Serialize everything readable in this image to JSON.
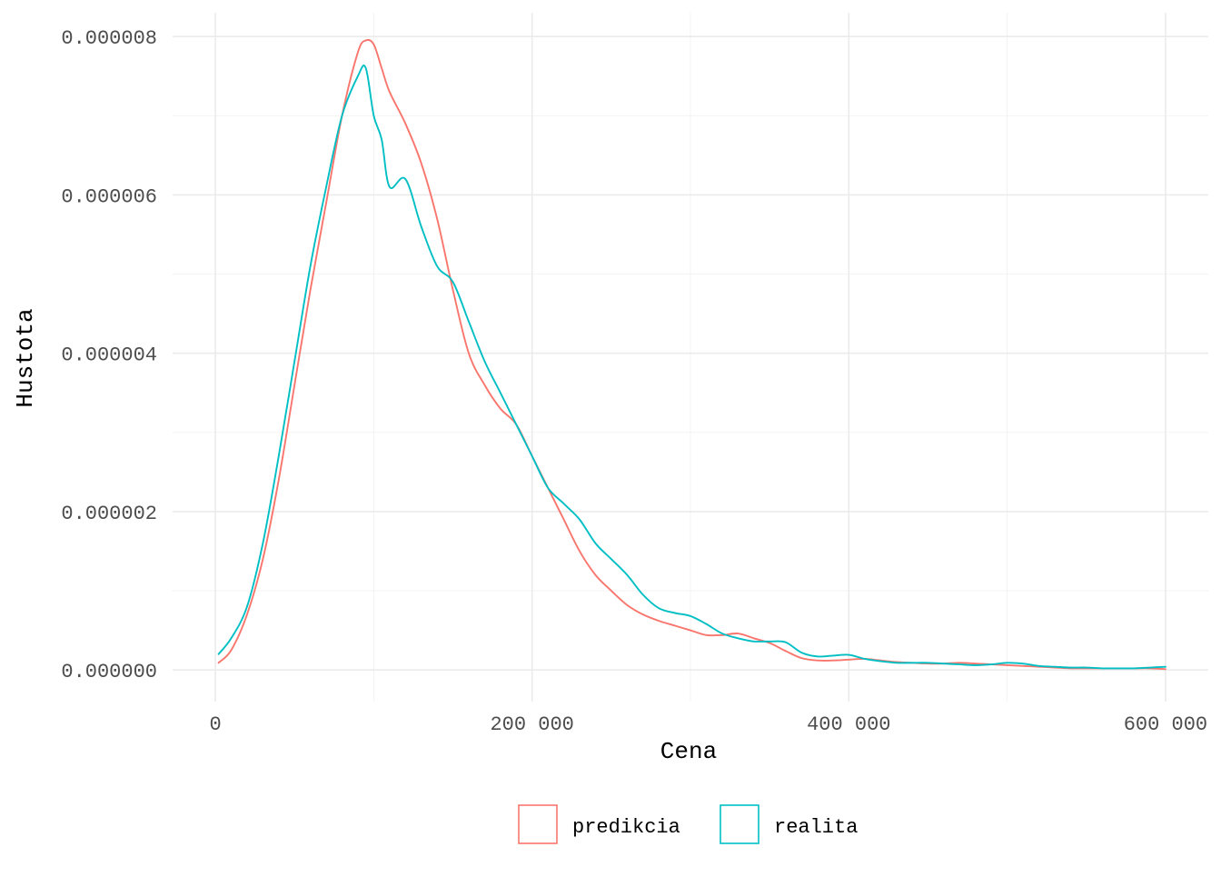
{
  "chart_data": {
    "type": "line",
    "title": "",
    "xlabel": "Cena",
    "ylabel": "Hustota",
    "xlim": [
      -27000,
      627000
    ],
    "ylim": [
      -4e-07,
      8.3e-06
    ],
    "x_ticks": [
      0,
      200000,
      400000,
      600000
    ],
    "x_tick_labels": [
      "0",
      "200 000",
      "400 000",
      "600 000"
    ],
    "y_ticks": [
      0,
      2e-06,
      4e-06,
      6e-06,
      8e-06
    ],
    "y_tick_labels": [
      "0.000000",
      "0.000002",
      "0.000004",
      "0.000006",
      "0.000008"
    ],
    "grid": true,
    "legend_position": "bottom",
    "series": [
      {
        "name": "predikcia",
        "color": "#F8766D",
        "x": [
          2000,
          10000,
          20000,
          30000,
          40000,
          50000,
          60000,
          70000,
          80000,
          90000,
          95000,
          100000,
          105000,
          110000,
          120000,
          130000,
          140000,
          150000,
          160000,
          170000,
          180000,
          190000,
          200000,
          210000,
          220000,
          230000,
          240000,
          250000,
          260000,
          270000,
          280000,
          290000,
          300000,
          310000,
          320000,
          330000,
          340000,
          350000,
          360000,
          370000,
          380000,
          390000,
          400000,
          410000,
          420000,
          430000,
          440000,
          450000,
          460000,
          470000,
          480000,
          490000,
          500000,
          510000,
          520000,
          530000,
          540000,
          550000,
          560000,
          570000,
          580000,
          590000,
          600000
        ],
        "y": [
          9e-08,
          2.5e-07,
          7e-07,
          1.4e-06,
          2.4e-06,
          3.6e-06,
          4.8e-06,
          5.9e-06,
          7e-06,
          7.8e-06,
          7.95e-06,
          7.9e-06,
          7.6e-06,
          7.3e-06,
          6.9e-06,
          6.4e-06,
          5.7e-06,
          4.8e-06,
          4e-06,
          3.6e-06,
          3.3e-06,
          3.1e-06,
          2.7e-06,
          2.3e-06,
          1.9e-06,
          1.5e-06,
          1.2e-06,
          1e-06,
          8.2e-07,
          7e-07,
          6.2e-07,
          5.6e-07,
          5e-07,
          4.4e-07,
          4.4e-07,
          4.6e-07,
          4e-07,
          3.4e-07,
          2.4e-07,
          1.5e-07,
          1.2e-07,
          1.2e-07,
          1.3e-07,
          1.4e-07,
          1.2e-07,
          1e-07,
          9e-08,
          8e-08,
          8e-08,
          9e-08,
          8e-08,
          7e-08,
          6e-08,
          5e-08,
          4e-08,
          3e-08,
          2e-08,
          2e-08,
          2e-08,
          2e-08,
          2e-08,
          2e-08,
          1e-08
        ]
      },
      {
        "name": "realita",
        "color": "#00BFC4",
        "x": [
          2000,
          10000,
          20000,
          30000,
          40000,
          50000,
          60000,
          70000,
          80000,
          90000,
          95000,
          100000,
          105000,
          110000,
          120000,
          130000,
          140000,
          150000,
          160000,
          170000,
          180000,
          190000,
          200000,
          210000,
          220000,
          230000,
          240000,
          250000,
          260000,
          270000,
          280000,
          290000,
          300000,
          310000,
          320000,
          330000,
          340000,
          350000,
          360000,
          370000,
          380000,
          390000,
          400000,
          410000,
          420000,
          430000,
          440000,
          450000,
          460000,
          470000,
          480000,
          490000,
          500000,
          510000,
          520000,
          530000,
          540000,
          550000,
          560000,
          570000,
          580000,
          590000,
          600000
        ],
        "y": [
          2e-07,
          4e-07,
          8e-07,
          1.6e-06,
          2.7e-06,
          3.9e-06,
          5.1e-06,
          6.1e-06,
          7e-06,
          7.5e-06,
          7.6e-06,
          7e-06,
          6.7e-06,
          6.1e-06,
          6.2e-06,
          5.6e-06,
          5.1e-06,
          4.9e-06,
          4.4e-06,
          3.9e-06,
          3.5e-06,
          3.1e-06,
          2.7e-06,
          2.3e-06,
          2.1e-06,
          1.9e-06,
          1.6e-06,
          1.4e-06,
          1.2e-06,
          9.5e-07,
          7.8e-07,
          7.2e-07,
          6.8e-07,
          5.8e-07,
          4.6e-07,
          4e-07,
          3.6e-07,
          3.6e-07,
          3.5e-07,
          2.2e-07,
          1.7e-07,
          1.8e-07,
          1.9e-07,
          1.4e-07,
          1.1e-07,
          9e-08,
          9e-08,
          9e-08,
          8e-08,
          7e-08,
          6e-08,
          7e-08,
          9e-08,
          8e-08,
          5e-08,
          4e-08,
          3e-08,
          3e-08,
          2e-08,
          2e-08,
          2e-08,
          3e-08,
          4e-08
        ]
      }
    ]
  }
}
